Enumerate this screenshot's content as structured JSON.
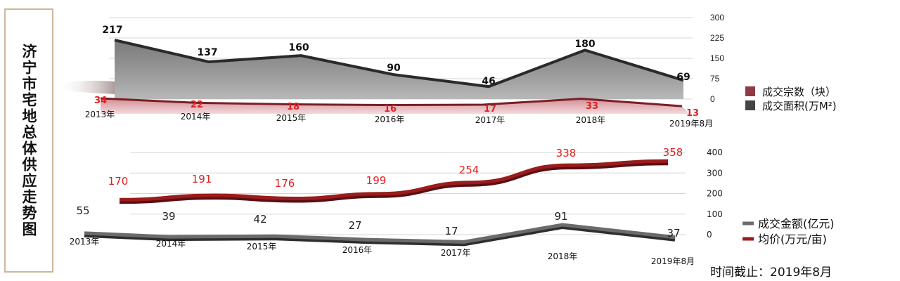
{
  "title": "济宁市宅地总体供应走势图",
  "cutoff_note": "时间截止：2019年8月",
  "chart_data": [
    {
      "type": "area",
      "categories": [
        "2013年",
        "2014年",
        "2015年",
        "2016年",
        "2017年",
        "2018年",
        "2019年8月"
      ],
      "series": [
        {
          "name": "成交宗数（块）",
          "values": [
            34,
            22,
            18,
            16,
            17,
            33,
            13
          ],
          "color": "#8b2a32",
          "label_color": "#e02020"
        },
        {
          "name": "成交面积(万M²)",
          "values": [
            217,
            137,
            160,
            90,
            46,
            180,
            69
          ],
          "color": "#444444",
          "label_color": "#111111"
        }
      ],
      "ylim": [
        0,
        300
      ],
      "y_ticks": [
        "0",
        "75",
        "150",
        "225",
        "300"
      ],
      "grid": true,
      "legend": "right"
    },
    {
      "type": "line",
      "categories": [
        "2013年",
        "2014年",
        "2015年",
        "2016年",
        "2017年",
        "2018年",
        "2019年8月"
      ],
      "series": [
        {
          "name": "成交金额(亿元)",
          "values": [
            55,
            39,
            42,
            27,
            17,
            91,
            37
          ],
          "color": "#6b6b6b",
          "label_color": "#222222"
        },
        {
          "name": "均价(万元/亩)",
          "values": [
            170,
            191,
            176,
            199,
            254,
            338,
            358
          ],
          "color": "#9a1c1c",
          "label_color": "#e02020"
        }
      ],
      "ylim": [
        0,
        400
      ],
      "y_ticks": [
        "0",
        "100",
        "200",
        "300",
        "400"
      ],
      "grid": true,
      "legend": "right"
    }
  ]
}
